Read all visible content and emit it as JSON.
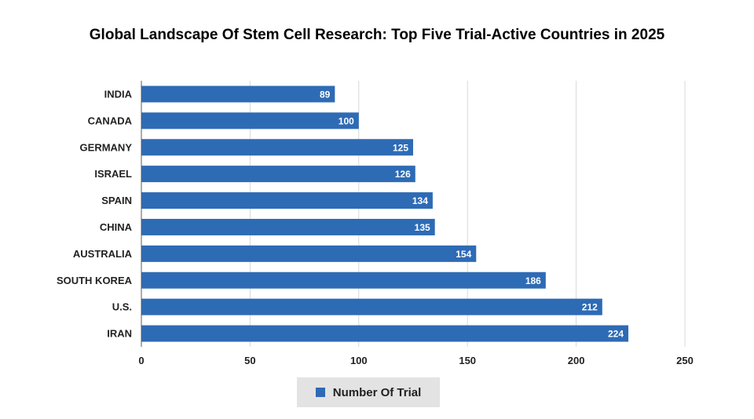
{
  "title": "Global Landscape Of Stem Cell Research: Top Five Trial-Active Countries in 2025",
  "colors": {
    "bar": "#2e6bb5",
    "grid": "#d9d9d9",
    "axis": "#595959",
    "legend_bg": "#e3e3e3"
  },
  "legend": {
    "label": "Number Of Trial",
    "placement": "bottom-center"
  },
  "chart_data": {
    "type": "bar",
    "orientation": "horizontal",
    "categories": [
      "INDIA",
      "CANADA",
      "GERMANY",
      "ISRAEL",
      "SPAIN",
      "CHINA",
      "AUSTRALIA",
      "SOUTH KOREA",
      "U.S.",
      "IRAN"
    ],
    "series": [
      {
        "name": "Number Of Trial",
        "values": [
          89,
          100,
          125,
          126,
          134,
          135,
          154,
          186,
          212,
          224
        ]
      }
    ],
    "xlim": [
      0,
      250
    ],
    "xticks": [
      "0",
      "50",
      "100",
      "150",
      "200",
      "250"
    ],
    "grid": true,
    "data_labels": true
  }
}
